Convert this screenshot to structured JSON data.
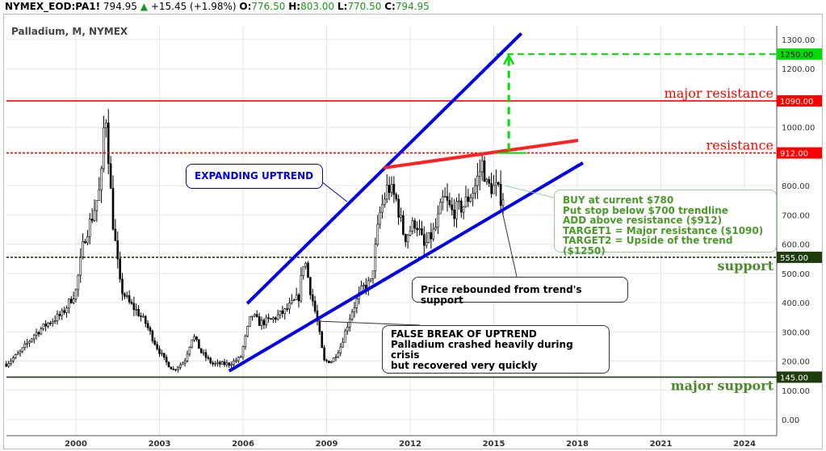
{
  "header": {
    "symbol": "NYMEX_EOD:PA1!",
    "last": "794.95",
    "change": "+15.45 (+1.98%)",
    "o_label": "O:",
    "o": "776.50",
    "h_label": "H:",
    "h": "803.00",
    "l_label": "L:",
    "l": "770.50",
    "c_label": "C:",
    "c": "794.95"
  },
  "chart_data": {
    "type": "candlestick",
    "title": "Palladium, M, NYMEX",
    "ylim": [
      -30,
      1350
    ],
    "xlim": [
      1997.5,
      2025.2
    ],
    "x_ticks": [
      "2000",
      "2003",
      "2006",
      "2009",
      "2012",
      "2015",
      "2018",
      "2021",
      "2024"
    ],
    "y_ticks": [
      "1300.00",
      "1200.00",
      "1000.00",
      "800.00",
      "700.00",
      "600.00",
      "500.00",
      "400.00",
      "300.00",
      "200.00",
      "100.00",
      "0.00"
    ],
    "grid": true,
    "close_path": [
      [
        1997.5,
        190
      ],
      [
        1998,
        230
      ],
      [
        1998.5,
        290
      ],
      [
        1999,
        330
      ],
      [
        1999.5,
        360
      ],
      [
        2000,
        440
      ],
      [
        2000.3,
        620
      ],
      [
        2000.6,
        700
      ],
      [
        2000.9,
        800
      ],
      [
        2001.05,
        1090
      ],
      [
        2001.3,
        700
      ],
      [
        2001.6,
        450
      ],
      [
        2001.9,
        400
      ],
      [
        2002.2,
        370
      ],
      [
        2002.5,
        330
      ],
      [
        2002.9,
        250
      ],
      [
        2003.2,
        200
      ],
      [
        2003.5,
        170
      ],
      [
        2003.9,
        200
      ],
      [
        2004.2,
        290
      ],
      [
        2004.5,
        230
      ],
      [
        2004.9,
        190
      ],
      [
        2005.5,
        190
      ],
      [
        2005.9,
        210
      ],
      [
        2006.3,
        360
      ],
      [
        2006.6,
        330
      ],
      [
        2007,
        340
      ],
      [
        2007.5,
        370
      ],
      [
        2008,
        420
      ],
      [
        2008.2,
        560
      ],
      [
        2008.4,
        450
      ],
      [
        2008.7,
        320
      ],
      [
        2008.9,
        200
      ],
      [
        2009.2,
        200
      ],
      [
        2009.5,
        250
      ],
      [
        2009.9,
        370
      ],
      [
        2010.3,
        450
      ],
      [
        2010.6,
        470
      ],
      [
        2010.9,
        700
      ],
      [
        2011.2,
        800
      ],
      [
        2011.5,
        750
      ],
      [
        2011.8,
        620
      ],
      [
        2012.2,
        680
      ],
      [
        2012.5,
        590
      ],
      [
        2012.9,
        650
      ],
      [
        2013.2,
        760
      ],
      [
        2013.5,
        710
      ],
      [
        2013.9,
        730
      ],
      [
        2014.3,
        790
      ],
      [
        2014.6,
        880
      ],
      [
        2014.75,
        800
      ],
      [
        2015.1,
        790
      ],
      [
        2015.3,
        750
      ],
      [
        2015.4,
        795
      ]
    ],
    "levels": [
      {
        "price": 1250,
        "tag": "1250.00",
        "color": "#00dd00",
        "style": "dashed",
        "label": ""
      },
      {
        "price": 1090,
        "tag": "1090.00",
        "color": "#ff0000",
        "style": "solid",
        "label": "major resistance"
      },
      {
        "price": 912,
        "tag": "912.00",
        "color": "#ff0000",
        "style": "dotted",
        "label": "resistance"
      },
      {
        "price": 555,
        "tag": "555.00",
        "color": "#1f3d0c",
        "style": "dotted",
        "label": "support"
      },
      {
        "price": 145,
        "tag": "145.00",
        "color": "#1f3d0c",
        "style": "solid",
        "label": "major support"
      }
    ],
    "trendlines": [
      {
        "color": "#0000ee",
        "from": [
          2006.15,
          397
        ],
        "to": [
          2015.99,
          1321
        ]
      },
      {
        "color": "#0000ee",
        "from": [
          2005.5,
          166
        ],
        "to": [
          2018.2,
          878
        ]
      },
      {
        "color": "#ff2020",
        "from": [
          2011.05,
          861
        ],
        "to": [
          2018.03,
          955
        ]
      }
    ],
    "annotations": {
      "expanding": "EXPANDING UPTREND",
      "rebound": "Price rebounded from trend's support",
      "false_break": [
        "FALSE BREAK OF UPTREND",
        "Palladium crashed heavily during crisis",
        "but recovered very quickly"
      ],
      "plan": [
        "BUY at current $780",
        "Put stop below $700 trendline",
        "ADD above resistance ($912)",
        "TARGET1 = Major resistance ($1090)",
        "TARGET2 = Upside of the trend ($1250)"
      ]
    },
    "colors": {
      "up": "#ffffff",
      "down": "#000000",
      "plan_text": "#4a9a2a",
      "label_green": "#4a8a2a"
    }
  }
}
